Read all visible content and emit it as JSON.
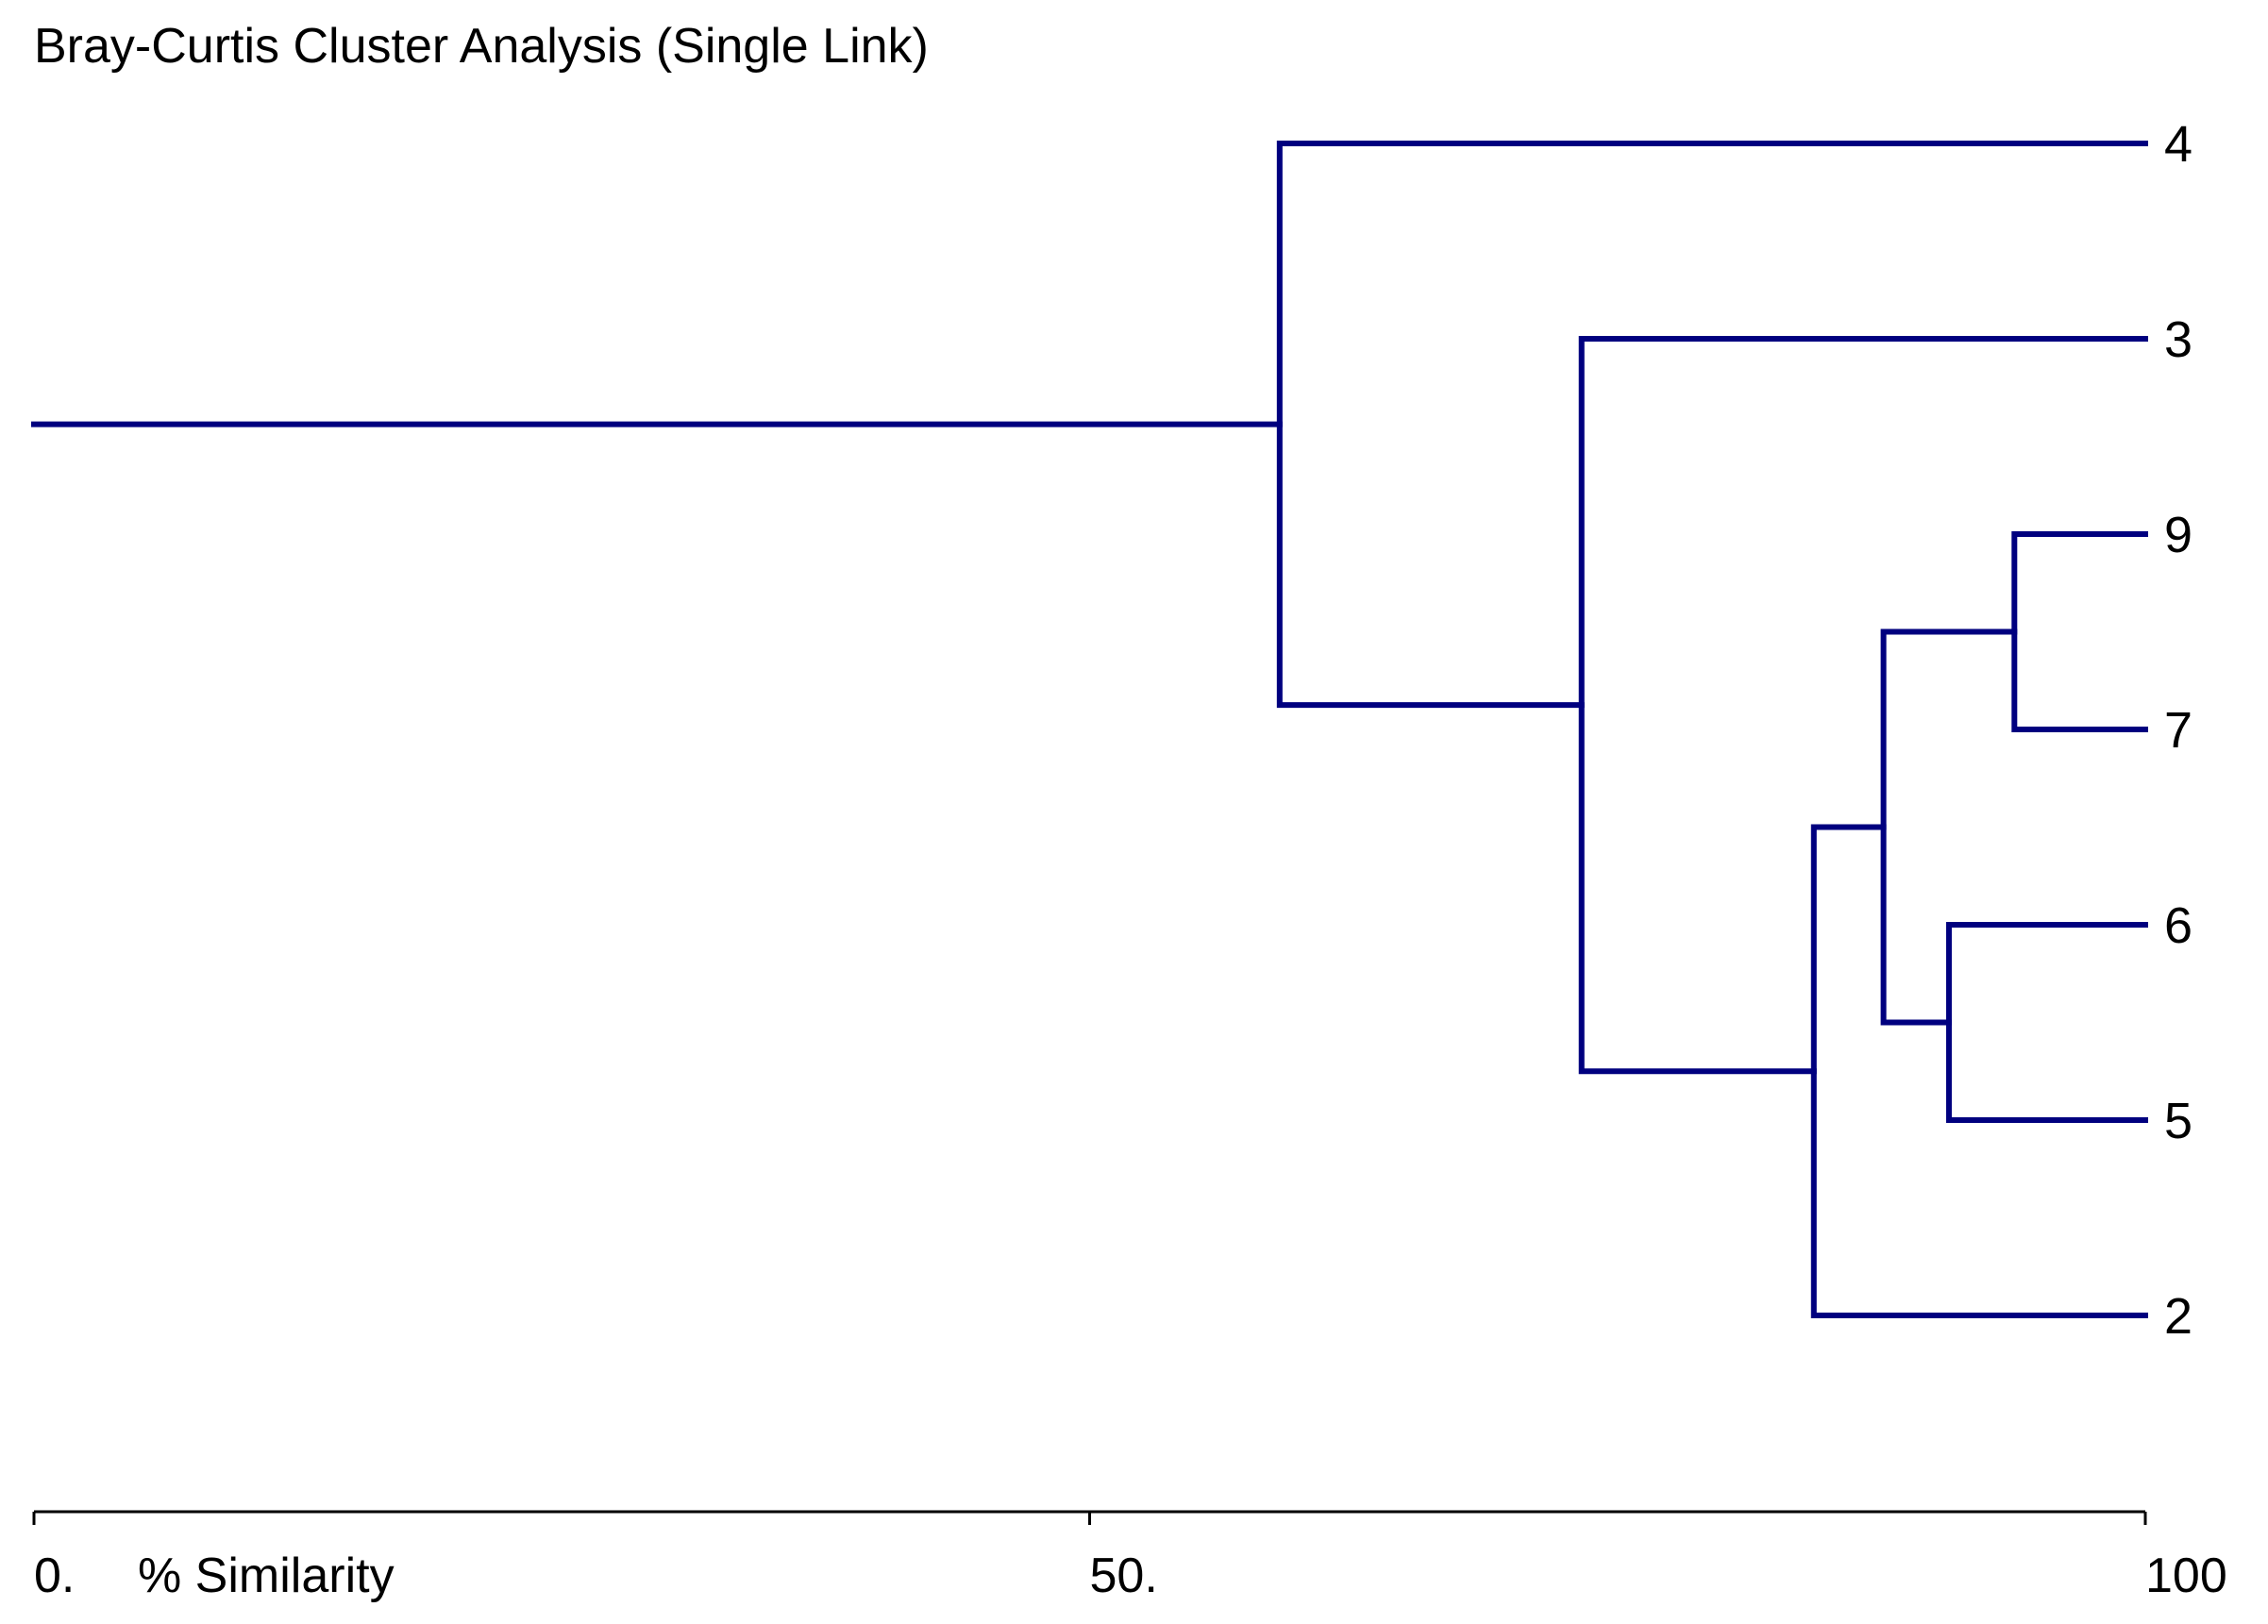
{
  "chart_data": {
    "type": "dendrogram",
    "title": "Bray-Curtis Cluster Analysis (Single Link)",
    "xlabel": "% Similarity",
    "xlim": [
      0,
      100
    ],
    "x_ticks": [
      {
        "value": 0,
        "label": "0."
      },
      {
        "value": 50,
        "label": "50."
      },
      {
        "value": 100,
        "label": "100"
      }
    ],
    "leaves": [
      "4",
      "3",
      "9",
      "7",
      "6",
      "5",
      "2"
    ],
    "merges": [
      {
        "a": "9",
        "b": "7",
        "similarity": 93.8
      },
      {
        "a": "6",
        "b": "5",
        "similarity": 90.7
      },
      {
        "a": "9|7",
        "b": "6|5",
        "similarity": 87.6
      },
      {
        "a": "9|7|6|5",
        "b": "2",
        "similarity": 84.3
      },
      {
        "a": "3",
        "b": "9|7|6|5|2",
        "similarity": 73.3
      },
      {
        "a": "4",
        "b": "3|9|7|6|5|2",
        "similarity": 59.0
      }
    ],
    "colors": {
      "branch": "#00007F",
      "axis": "#000000",
      "text": "#000000"
    }
  }
}
